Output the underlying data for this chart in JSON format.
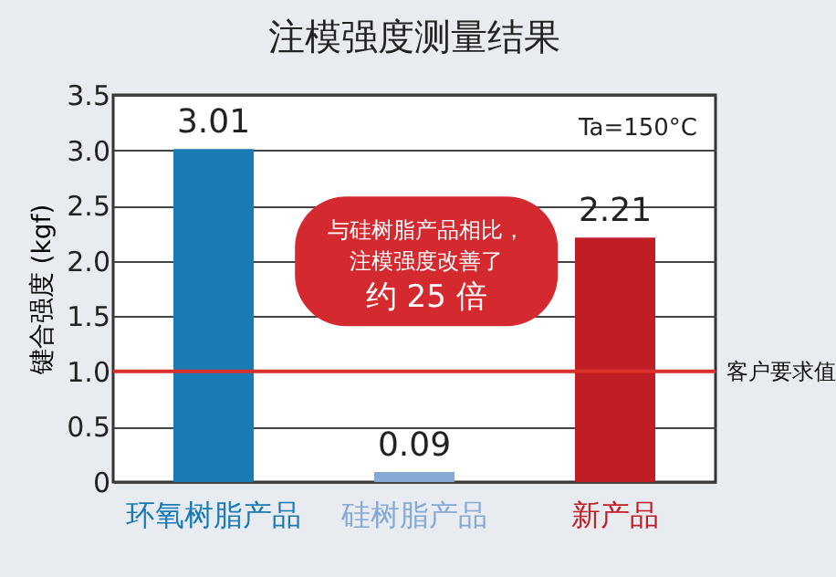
{
  "chart_data": {
    "type": "bar",
    "title": "注模强度测量结果",
    "ylabel": "键合强度 (kgf)",
    "categories": [
      "环氧树脂产品",
      "硅树脂产品",
      "新产品"
    ],
    "values": [
      3.01,
      0.09,
      2.21
    ],
    "colors": [
      "#1a7ab3",
      "#86a9d4",
      "#bf1e24"
    ],
    "data_labels": true,
    "ylim": [
      0,
      3.5
    ],
    "yticks": [
      0,
      0.5,
      {
        "value": 1,
        "label": "1.0"
      },
      1.5,
      {
        "value": 2,
        "label": "2.0"
      },
      2.5,
      {
        "value": 3,
        "label": "3.0"
      },
      3.5
    ],
    "grid": "y",
    "ref_lines": [
      {
        "axis": "y",
        "value": 1,
        "label": "客户要求值",
        "color": "#d9302c"
      }
    ],
    "annotations": [
      "Ta=150°C",
      "与硅树脂产品相比，",
      "注模强度改善了",
      "约 25 倍"
    ]
  }
}
